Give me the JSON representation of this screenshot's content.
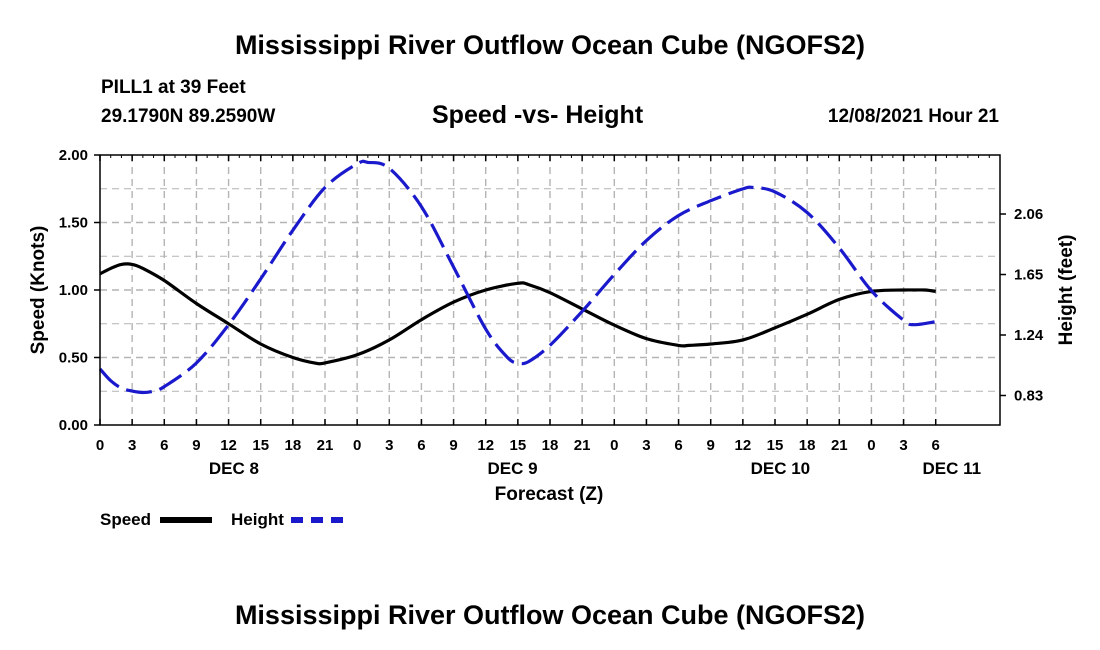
{
  "header": {
    "title": "Mississippi River Outflow Ocean Cube (NGOFS2)",
    "station": "PILL1 at 39 Feet",
    "coords": "29.1790N  89.2590W",
    "subtitle": "Speed -vs- Height",
    "timestamp": "12/08/2021 Hour 21"
  },
  "footer": {
    "title": "Mississippi River Outflow Ocean Cube (NGOFS2)"
  },
  "legend": {
    "speed_label": "Speed",
    "height_label": "Height"
  },
  "colors": {
    "speed": "#000000",
    "height": "#1a1acc",
    "grid": "#b4b4b4"
  },
  "chart_data": {
    "type": "line",
    "xlabel": "Forecast (Z)",
    "ylabel_left": "Speed (Knots)",
    "ylabel_right": "Height (feet)",
    "x_range_hours": [
      0,
      84
    ],
    "x_ticks": [
      {
        "hour": 0,
        "label": "0"
      },
      {
        "hour": 3,
        "label": "3"
      },
      {
        "hour": 6,
        "label": "6"
      },
      {
        "hour": 9,
        "label": "9"
      },
      {
        "hour": 12,
        "label": "12"
      },
      {
        "hour": 15,
        "label": "15"
      },
      {
        "hour": 18,
        "label": "18"
      },
      {
        "hour": 21,
        "label": "21"
      },
      {
        "hour": 24,
        "label": "0"
      },
      {
        "hour": 27,
        "label": "3"
      },
      {
        "hour": 30,
        "label": "6"
      },
      {
        "hour": 33,
        "label": "9"
      },
      {
        "hour": 36,
        "label": "12"
      },
      {
        "hour": 39,
        "label": "15"
      },
      {
        "hour": 42,
        "label": "18"
      },
      {
        "hour": 45,
        "label": "21"
      },
      {
        "hour": 48,
        "label": "0"
      },
      {
        "hour": 51,
        "label": "3"
      },
      {
        "hour": 54,
        "label": "6"
      },
      {
        "hour": 57,
        "label": "9"
      },
      {
        "hour": 60,
        "label": "12"
      },
      {
        "hour": 63,
        "label": "15"
      },
      {
        "hour": 66,
        "label": "18"
      },
      {
        "hour": 69,
        "label": "21"
      },
      {
        "hour": 72,
        "label": "0"
      },
      {
        "hour": 75,
        "label": "3"
      },
      {
        "hour": 78,
        "label": "6"
      }
    ],
    "date_labels": [
      {
        "hour": 12.5,
        "label": "DEC 8"
      },
      {
        "hour": 38.5,
        "label": "DEC 9"
      },
      {
        "hour": 63.5,
        "label": "DEC 10"
      },
      {
        "hour": 79.5,
        "label": "DEC 11"
      }
    ],
    "y_left": {
      "range": [
        0,
        2
      ],
      "ticks": [
        0,
        0.5,
        1.0,
        1.5,
        2.0
      ],
      "tick_labels": [
        "0.00",
        "0.50",
        "1.00",
        "1.50",
        "2.00"
      ]
    },
    "y_right": {
      "range_feet": [
        0.63,
        2.46
      ],
      "ticks": [
        0.83,
        1.24,
        1.65,
        2.06
      ],
      "tick_labels": [
        "0.83",
        "1.24",
        "1.65",
        "2.06"
      ]
    },
    "series": [
      {
        "name": "Speed",
        "units": "knots",
        "style": "solid",
        "x": [
          0,
          1,
          2,
          3,
          4,
          6,
          9,
          12,
          15,
          18,
          20,
          21,
          24,
          27,
          30,
          33,
          36,
          39,
          40,
          42,
          45,
          48,
          51,
          54,
          55,
          57,
          60,
          63,
          66,
          69,
          72,
          75,
          76,
          77,
          78
        ],
        "values": [
          1.12,
          1.16,
          1.19,
          1.19,
          1.16,
          1.07,
          0.9,
          0.75,
          0.6,
          0.5,
          0.46,
          0.46,
          0.52,
          0.63,
          0.78,
          0.91,
          1.0,
          1.05,
          1.04,
          0.98,
          0.86,
          0.74,
          0.64,
          0.59,
          0.59,
          0.6,
          0.63,
          0.72,
          0.82,
          0.93,
          0.99,
          1.0,
          1.0,
          1.0,
          0.99
        ]
      },
      {
        "name": "Height",
        "units": "feet",
        "style": "dashed",
        "x": [
          0,
          1,
          2,
          3,
          4,
          5,
          6,
          9,
          12,
          15,
          18,
          21,
          24,
          25,
          27,
          30,
          33,
          36,
          38,
          39,
          40,
          42,
          45,
          48,
          51,
          54,
          57,
          60,
          61,
          63,
          66,
          69,
          72,
          75,
          76,
          78
        ],
        "values": [
          1.01,
          0.93,
          0.88,
          0.86,
          0.85,
          0.86,
          0.89,
          1.05,
          1.31,
          1.62,
          1.95,
          2.24,
          2.4,
          2.41,
          2.37,
          2.11,
          1.7,
          1.28,
          1.09,
          1.05,
          1.06,
          1.17,
          1.4,
          1.65,
          1.88,
          2.05,
          2.15,
          2.23,
          2.24,
          2.21,
          2.07,
          1.83,
          1.54,
          1.34,
          1.31,
          1.33
        ]
      }
    ]
  }
}
